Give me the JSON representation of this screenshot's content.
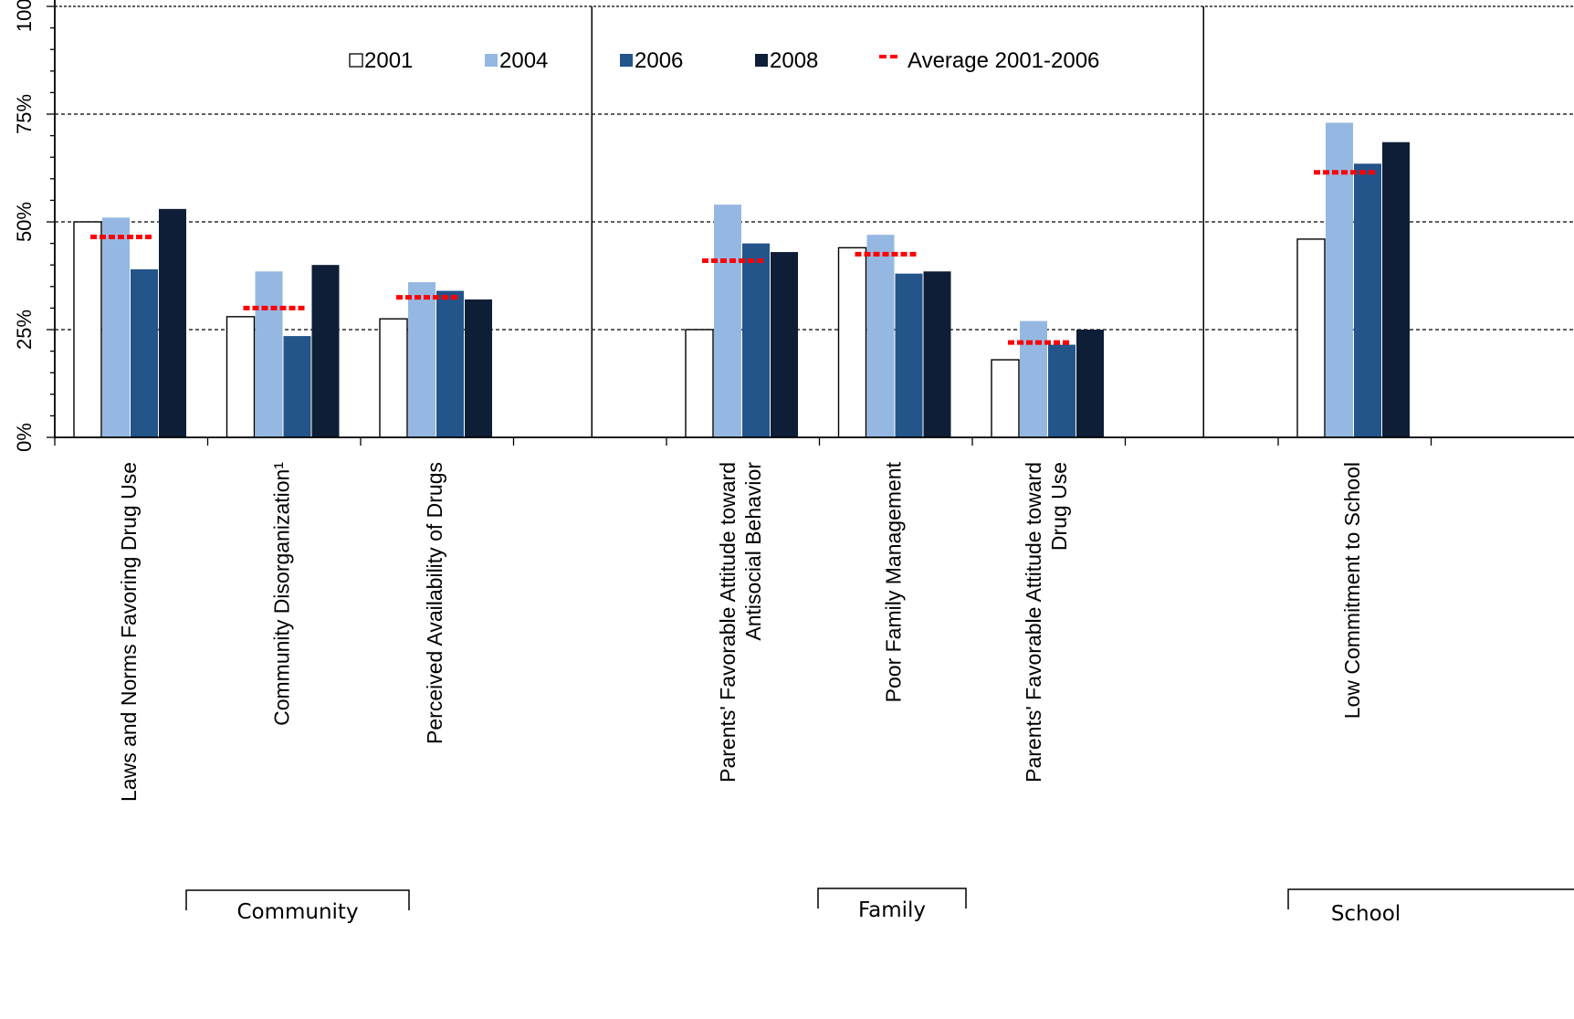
{
  "chart_data": {
    "type": "bar",
    "ylim": [
      0,
      100
    ],
    "yticks": [
      "0%",
      "25%",
      "50%",
      "75%",
      "100%"
    ],
    "grid": true,
    "legend_position": "top",
    "legend": [
      {
        "name": "2001",
        "color": "#ffffff",
        "kind": "bar"
      },
      {
        "name": "2004",
        "color": "#95b8e2",
        "kind": "bar"
      },
      {
        "name": "2006",
        "color": "#23548a",
        "kind": "bar"
      },
      {
        "name": "2008",
        "color": "#0e1e36",
        "kind": "bar"
      },
      {
        "name": "Average 2001-2006",
        "color": "#ff0000",
        "kind": "dash"
      }
    ],
    "groups": [
      {
        "label": "Community",
        "categories": [
          0,
          1,
          2
        ]
      },
      {
        "label": "Family",
        "categories": [
          4,
          5,
          6
        ]
      },
      {
        "label": "School",
        "categories": [
          8
        ]
      }
    ],
    "categories": [
      {
        "label": [
          "Laws and Norms Favoring Drug Use"
        ],
        "values": [
          50,
          51,
          39,
          53
        ],
        "average": 46.5
      },
      {
        "label": [
          "Community Disorganization¹"
        ],
        "values": [
          28,
          38.5,
          23.5,
          40
        ],
        "average": 30
      },
      {
        "label": [
          "Perceived Availability of Drugs"
        ],
        "values": [
          27.5,
          36,
          34,
          32
        ],
        "average": 32.5
      },
      {
        "label": [],
        "values": [],
        "average": null
      },
      {
        "label": [
          "Parents' Favorable Attitude toward",
          "Antisocial Behavior"
        ],
        "values": [
          25,
          54,
          45,
          43
        ],
        "average": 41
      },
      {
        "label": [
          "Poor Family Management"
        ],
        "values": [
          44,
          47,
          38,
          38.5
        ],
        "average": 42.5
      },
      {
        "label": [
          "Parents' Favorable Attitude toward",
          "Drug Use"
        ],
        "values": [
          18,
          27,
          21.5,
          25
        ],
        "average": 22
      },
      {
        "label": [],
        "values": [],
        "average": null
      },
      {
        "label": [
          "Low Commitment to School"
        ],
        "values": [
          46,
          73,
          63.5,
          68.5
        ],
        "average": 61.5
      }
    ],
    "dividers_after_category": [
      3,
      7
    ]
  }
}
